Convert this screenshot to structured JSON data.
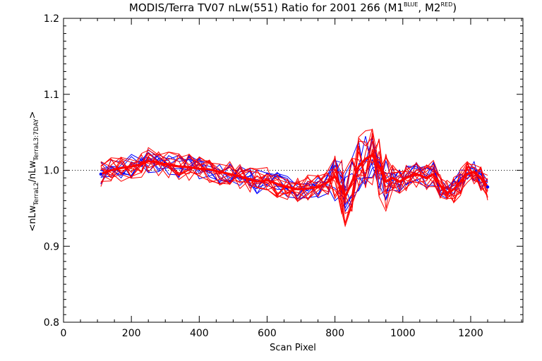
{
  "chart_data": {
    "type": "line",
    "title_main": "MODIS/Terra TV07 nLw(551) Ratio for 2001 266 (M1",
    "title_sup1": "BLUE",
    "title_mid": ", M2",
    "title_sup2": "RED",
    "title_end": ")",
    "xlabel": "Scan Pixel",
    "ylabel_parts": {
      "open": "<nLw",
      "sub1": "TerraL2",
      "slash": "/nLw",
      "sub2": "TerraL3:7DAY",
      "close": ">"
    },
    "xlim": [
      0,
      1354
    ],
    "ylim": [
      0.8,
      1.2
    ],
    "x_ticks": [
      0,
      200,
      400,
      600,
      800,
      1000,
      1200
    ],
    "y_ticks": [
      0.8,
      0.9,
      1.0,
      1.1,
      1.2
    ],
    "x_tick_labels": [
      "0",
      "200",
      "400",
      "600",
      "800",
      "1000",
      "1200"
    ],
    "y_tick_labels": [
      "0.8",
      "0.9",
      "1.0",
      "1.1",
      "1.2"
    ],
    "reference_line": 1.0,
    "grid": false,
    "colors": {
      "M1": "#0000ff",
      "M2": "#ff0000",
      "mean": "#ff0000",
      "reference": "#000000"
    },
    "x": [
      110,
      140,
      170,
      200,
      230,
      250,
      280,
      310,
      340,
      370,
      400,
      430,
      460,
      490,
      520,
      550,
      570,
      600,
      630,
      660,
      690,
      720,
      750,
      780,
      800,
      820,
      830,
      850,
      870,
      890,
      910,
      930,
      950,
      970,
      990,
      1010,
      1040,
      1070,
      1090,
      1110,
      1130,
      1150,
      1170,
      1190,
      1210,
      1230,
      1250
    ],
    "mean_ratio": [
      0.995,
      1.0,
      1.003,
      1.005,
      1.008,
      1.012,
      1.01,
      1.007,
      1.005,
      1.004,
      1.002,
      1.001,
      0.998,
      0.995,
      0.992,
      0.988,
      0.985,
      0.987,
      0.982,
      0.978,
      0.975,
      0.976,
      0.978,
      0.985,
      0.992,
      0.975,
      0.965,
      0.985,
      1.005,
      1.015,
      1.02,
      1.005,
      0.985,
      0.99,
      0.985,
      0.99,
      0.995,
      0.99,
      0.995,
      0.98,
      0.97,
      0.975,
      0.985,
      0.995,
      0.998,
      0.99,
      0.978
    ],
    "series_count_M1": 8,
    "series_count_M2": 12
  }
}
